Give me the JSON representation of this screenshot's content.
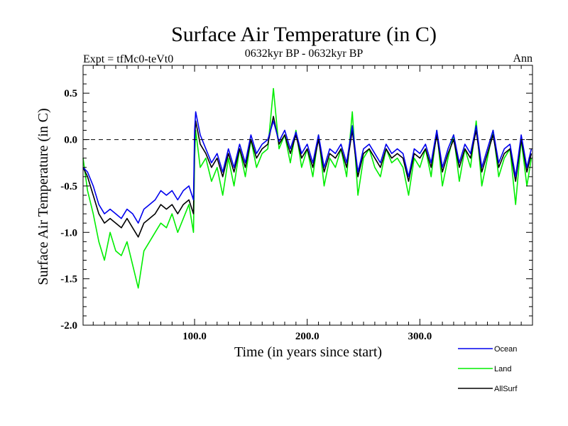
{
  "chart_data": {
    "type": "line",
    "title": "Surface Air Temperature (in C)",
    "subtitle": "0632kyr BP - 0632kyr BP",
    "left_note": "Expt = tfMc0-teVt0",
    "right_note": "Ann",
    "xlabel": "Time (in years since start)",
    "ylabel": "Surface Air Temperature (in C)",
    "xlim": [
      1,
      400
    ],
    "ylim": [
      -2.0,
      0.8
    ],
    "x_ticks": [
      100,
      200,
      300
    ],
    "x_tick_labels": [
      "100.0",
      "200.0",
      "300.0"
    ],
    "y_ticks": [
      -2.0,
      -1.5,
      -1.0,
      -0.5,
      0.0,
      0.5
    ],
    "y_tick_labels": [
      "-2.0",
      "-1.5",
      "-1.0",
      "-0.5",
      "0.0",
      "0.5"
    ],
    "reference_line": 0.0,
    "legend_position": "bottom-right, outside plot",
    "series": [
      {
        "name": "Land",
        "color": "#00ee00",
        "x": [
          1,
          5,
          10,
          15,
          20,
          25,
          30,
          35,
          40,
          45,
          50,
          55,
          60,
          65,
          70,
          75,
          80,
          85,
          90,
          95,
          99,
          100,
          101,
          105,
          110,
          115,
          120,
          125,
          130,
          135,
          140,
          145,
          150,
          155,
          160,
          165,
          170,
          175,
          180,
          185,
          190,
          195,
          200,
          205,
          210,
          215,
          220,
          225,
          230,
          235,
          240,
          245,
          250,
          255,
          260,
          265,
          270,
          275,
          280,
          285,
          290,
          295,
          300,
          305,
          310,
          315,
          320,
          325,
          330,
          335,
          340,
          345,
          350,
          355,
          360,
          365,
          370,
          375,
          380,
          385,
          390,
          395,
          399
        ],
        "values": [
          -0.2,
          -0.55,
          -0.8,
          -1.1,
          -1.3,
          -1.0,
          -1.2,
          -1.25,
          -1.1,
          -1.35,
          -1.6,
          -1.2,
          -1.1,
          -1.0,
          -0.9,
          -0.95,
          -0.8,
          -1.0,
          -0.85,
          -0.7,
          -1.0,
          -0.2,
          0.1,
          -0.3,
          -0.2,
          -0.45,
          -0.3,
          -0.6,
          -0.2,
          -0.5,
          -0.1,
          -0.4,
          0.0,
          -0.3,
          -0.15,
          -0.1,
          0.55,
          -0.1,
          0.05,
          -0.25,
          0.1,
          -0.3,
          -0.1,
          -0.4,
          0.05,
          -0.5,
          -0.2,
          -0.3,
          -0.1,
          -0.4,
          0.3,
          -0.6,
          -0.2,
          -0.1,
          -0.3,
          -0.4,
          -0.1,
          -0.25,
          -0.2,
          -0.3,
          -0.6,
          -0.2,
          -0.3,
          -0.1,
          -0.4,
          0.1,
          -0.5,
          -0.2,
          0.05,
          -0.45,
          -0.1,
          -0.3,
          0.2,
          -0.5,
          -0.2,
          0.1,
          -0.4,
          -0.2,
          -0.1,
          -0.7,
          0.0,
          -0.5,
          -0.2
        ]
      },
      {
        "name": "AllSurf",
        "color": "#000000",
        "x": [
          1,
          5,
          10,
          15,
          20,
          25,
          30,
          35,
          40,
          45,
          50,
          55,
          60,
          65,
          70,
          75,
          80,
          85,
          90,
          95,
          99,
          100,
          101,
          105,
          110,
          115,
          120,
          125,
          130,
          135,
          140,
          145,
          150,
          155,
          160,
          165,
          170,
          175,
          180,
          185,
          190,
          195,
          200,
          205,
          210,
          215,
          220,
          225,
          230,
          235,
          240,
          245,
          250,
          255,
          260,
          265,
          270,
          275,
          280,
          285,
          290,
          295,
          300,
          305,
          310,
          315,
          320,
          325,
          330,
          335,
          340,
          345,
          350,
          355,
          360,
          365,
          370,
          375,
          380,
          385,
          390,
          395,
          399
        ],
        "values": [
          -0.3,
          -0.4,
          -0.6,
          -0.8,
          -0.9,
          -0.85,
          -0.9,
          -0.95,
          -0.85,
          -0.95,
          -1.05,
          -0.9,
          -0.85,
          -0.8,
          -0.7,
          -0.75,
          -0.7,
          -0.8,
          -0.7,
          -0.65,
          -0.8,
          0.0,
          0.2,
          -0.05,
          -0.15,
          -0.3,
          -0.2,
          -0.4,
          -0.15,
          -0.35,
          -0.1,
          -0.3,
          0.0,
          -0.2,
          -0.1,
          -0.05,
          0.25,
          -0.05,
          0.05,
          -0.15,
          0.05,
          -0.2,
          -0.1,
          -0.3,
          0.0,
          -0.35,
          -0.15,
          -0.2,
          -0.1,
          -0.3,
          0.1,
          -0.4,
          -0.15,
          -0.1,
          -0.2,
          -0.3,
          -0.1,
          -0.2,
          -0.15,
          -0.2,
          -0.45,
          -0.15,
          -0.2,
          -0.1,
          -0.3,
          0.05,
          -0.35,
          -0.15,
          0.0,
          -0.3,
          -0.1,
          -0.2,
          0.1,
          -0.35,
          -0.15,
          0.05,
          -0.3,
          -0.15,
          -0.1,
          -0.45,
          0.0,
          -0.35,
          -0.15
        ]
      },
      {
        "name": "Ocean",
        "color": "#0000ee",
        "x": [
          1,
          5,
          10,
          15,
          20,
          25,
          30,
          35,
          40,
          45,
          50,
          55,
          60,
          65,
          70,
          75,
          80,
          85,
          90,
          95,
          99,
          100,
          101,
          105,
          110,
          115,
          120,
          125,
          130,
          135,
          140,
          145,
          150,
          155,
          160,
          165,
          170,
          175,
          180,
          185,
          190,
          195,
          200,
          205,
          210,
          215,
          220,
          225,
          230,
          235,
          240,
          245,
          250,
          255,
          260,
          265,
          270,
          275,
          280,
          285,
          290,
          295,
          300,
          305,
          310,
          315,
          320,
          325,
          330,
          335,
          340,
          345,
          350,
          355,
          360,
          365,
          370,
          375,
          380,
          385,
          390,
          395,
          399
        ],
        "values": [
          -0.3,
          -0.35,
          -0.5,
          -0.7,
          -0.8,
          -0.75,
          -0.8,
          -0.85,
          -0.75,
          -0.8,
          -0.9,
          -0.75,
          -0.7,
          -0.65,
          -0.55,
          -0.6,
          -0.55,
          -0.65,
          -0.55,
          -0.5,
          -0.65,
          0.1,
          0.3,
          0.05,
          -0.1,
          -0.25,
          -0.15,
          -0.35,
          -0.1,
          -0.3,
          -0.05,
          -0.25,
          0.05,
          -0.15,
          -0.05,
          0.0,
          0.2,
          -0.02,
          0.1,
          -0.1,
          0.08,
          -0.15,
          -0.05,
          -0.25,
          0.05,
          -0.3,
          -0.1,
          -0.15,
          -0.05,
          -0.25,
          0.15,
          -0.35,
          -0.1,
          -0.05,
          -0.15,
          -0.25,
          -0.05,
          -0.15,
          -0.1,
          -0.15,
          -0.4,
          -0.1,
          -0.15,
          -0.05,
          -0.25,
          0.1,
          -0.3,
          -0.1,
          0.05,
          -0.25,
          -0.05,
          -0.15,
          0.15,
          -0.3,
          -0.1,
          0.1,
          -0.25,
          -0.1,
          -0.05,
          -0.4,
          0.05,
          -0.3,
          -0.1
        ]
      }
    ],
    "legend": [
      {
        "name": "Ocean",
        "color": "#0000ee"
      },
      {
        "name": "Land",
        "color": "#00ee00"
      },
      {
        "name": "AllSurf",
        "color": "#000000"
      }
    ]
  }
}
